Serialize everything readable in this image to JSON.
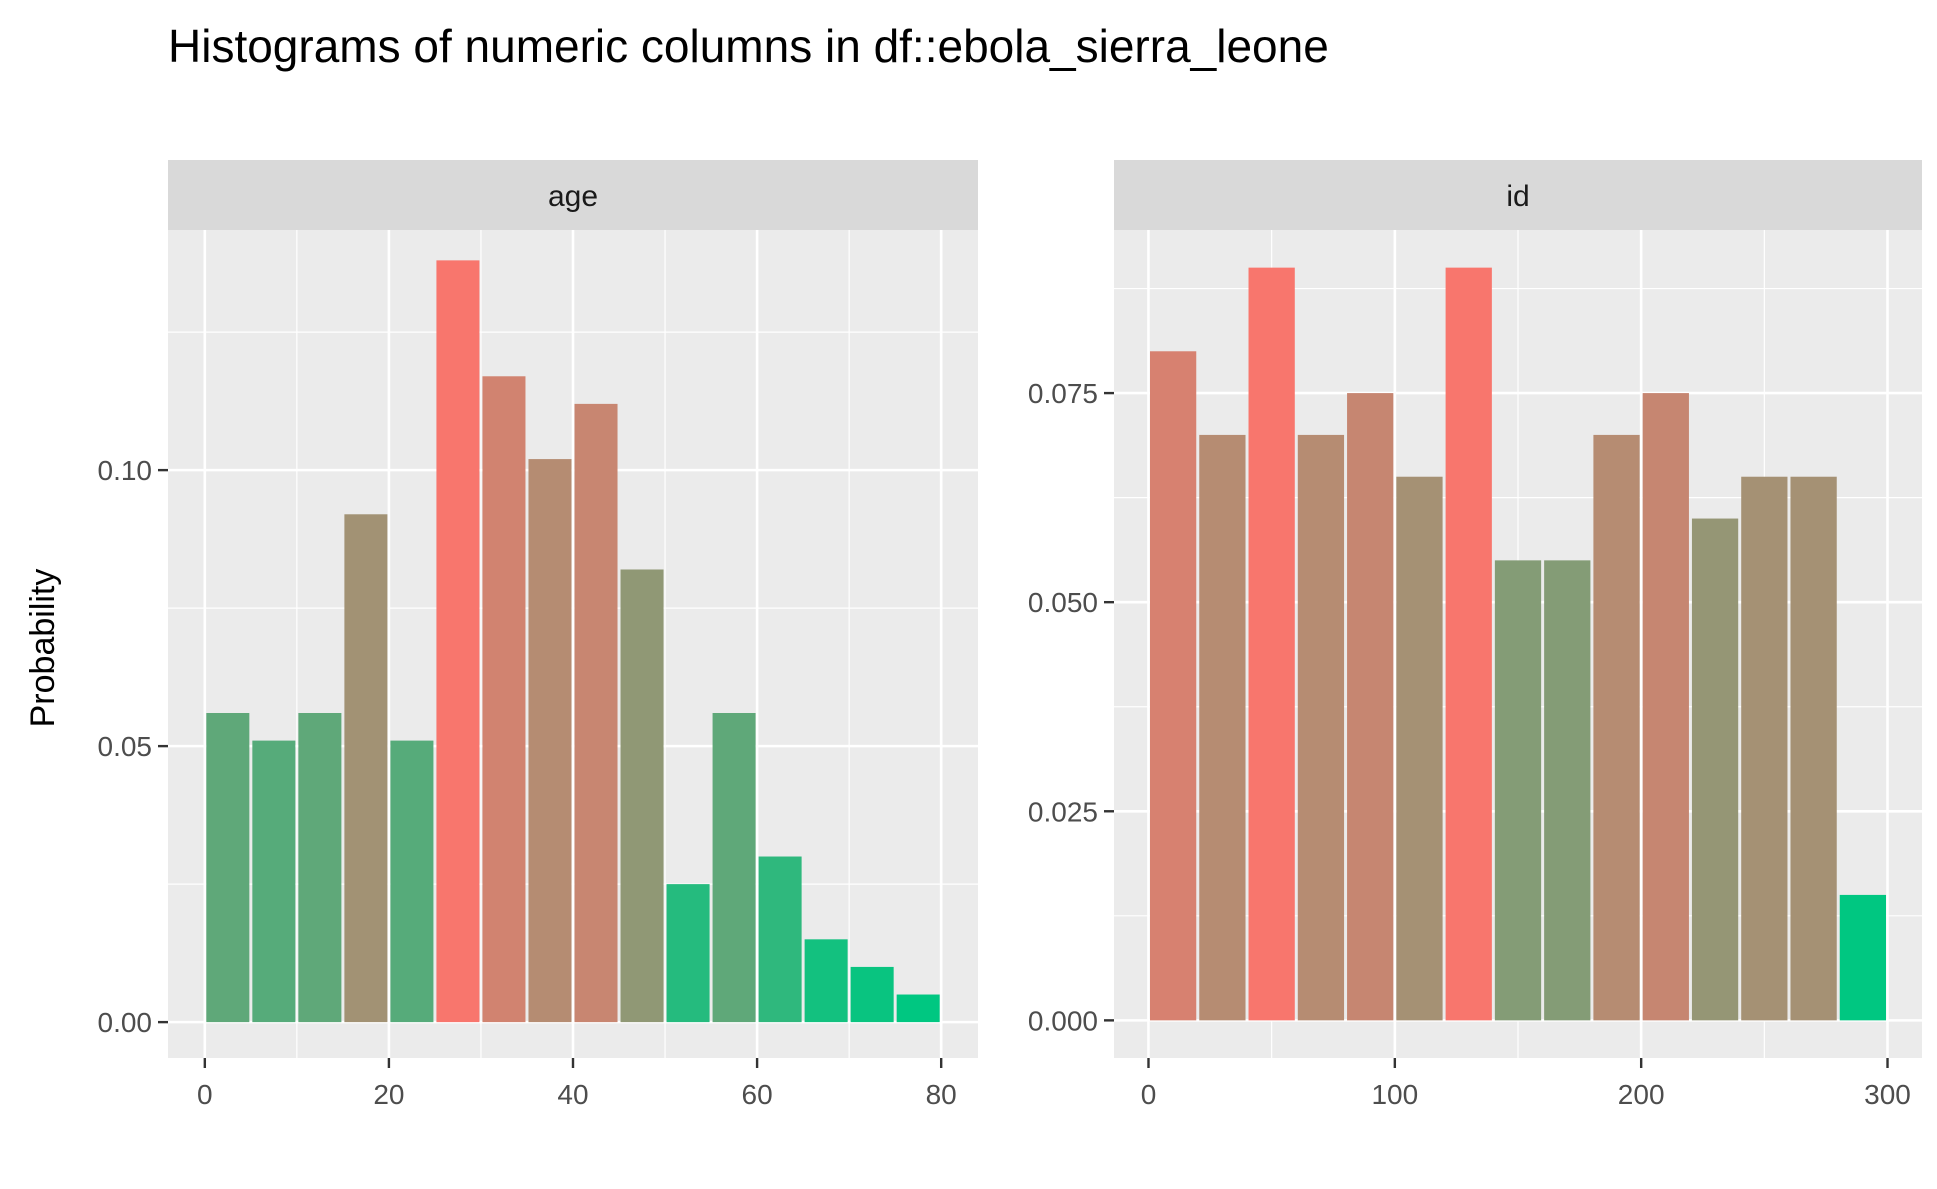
{
  "chart_data": {
    "type": "bar",
    "title": "Histograms of numeric columns in df::ebola_sierra_leone",
    "ylabel": "Probability",
    "xlabel": "",
    "colors": {
      "low": "#00c781",
      "high": "#f8766d",
      "panel_background": "#ebebeb",
      "strip_background": "#d9d9d9",
      "grid": "#ffffff",
      "tick": "#333333"
    },
    "facets": [
      {
        "label": "age",
        "xlim": [
          -4,
          84
        ],
        "ylim": [
          -0.0065,
          0.1435
        ],
        "x_ticks": [
          0,
          20,
          40,
          60,
          80
        ],
        "x_tick_labels": [
          "0",
          "20",
          "40",
          "60",
          "80"
        ],
        "y_ticks": [
          0.0,
          0.05,
          0.1
        ],
        "y_tick_labels": [
          "0.00",
          "0.05",
          "0.10"
        ],
        "bin_width": 5,
        "bin_starts": [
          0,
          5,
          10,
          15,
          20,
          25,
          30,
          35,
          40,
          45,
          50,
          55,
          60,
          65,
          70,
          75
        ],
        "values": [
          0.056,
          0.051,
          0.056,
          0.092,
          0.051,
          0.138,
          0.117,
          0.102,
          0.112,
          0.082,
          0.025,
          0.056,
          0.03,
          0.015,
          0.01,
          0.005
        ]
      },
      {
        "label": "id",
        "xlim": [
          -14,
          314
        ],
        "ylim": [
          -0.0045,
          0.0945
        ],
        "x_ticks": [
          0,
          100,
          200,
          300
        ],
        "x_tick_labels": [
          "0",
          "100",
          "200",
          "300"
        ],
        "y_ticks": [
          0.0,
          0.025,
          0.05,
          0.075
        ],
        "y_tick_labels": [
          "0.000",
          "0.025",
          "0.050",
          "0.075"
        ],
        "bin_width": 20,
        "bin_starts": [
          0,
          20,
          40,
          60,
          80,
          100,
          120,
          140,
          160,
          180,
          200,
          220,
          240,
          260,
          280
        ],
        "values": [
          0.08,
          0.07,
          0.09,
          0.07,
          0.075,
          0.065,
          0.09,
          0.055,
          0.055,
          0.07,
          0.075,
          0.06,
          0.065,
          0.065,
          0.015
        ]
      }
    ]
  }
}
